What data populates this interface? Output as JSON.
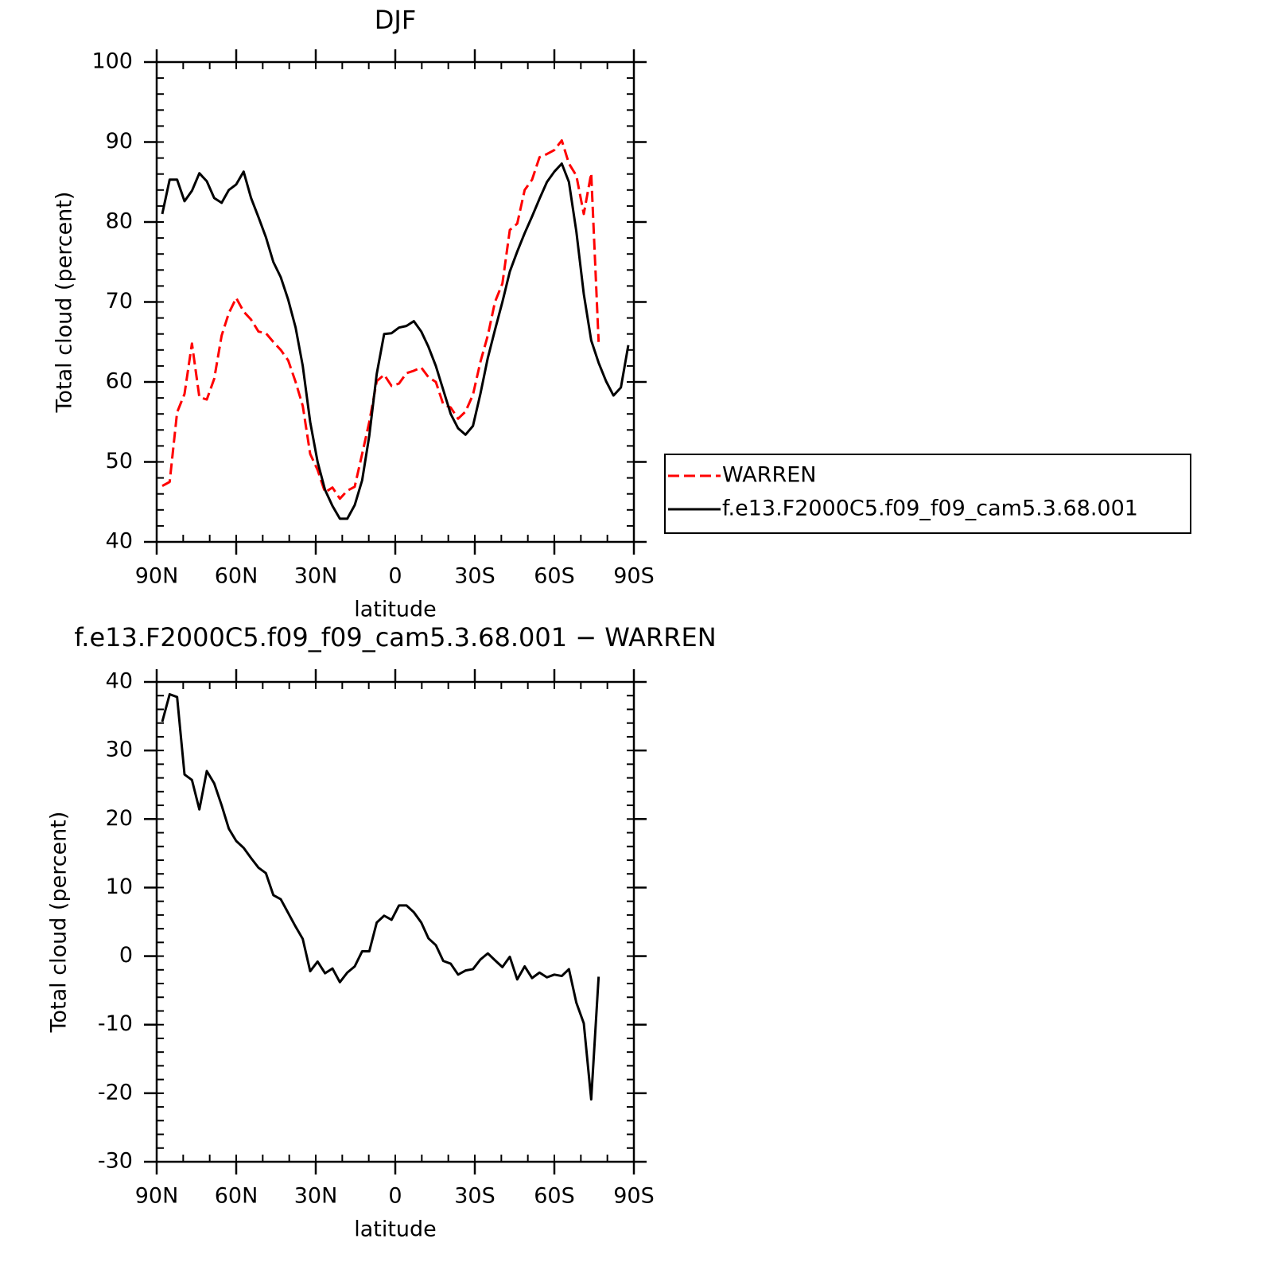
{
  "chart_data": [
    {
      "type": "line",
      "title": "DJF",
      "xlabel": "latitude",
      "ylabel": "Total cloud (percent)",
      "xlim": [
        90,
        -90
      ],
      "ylim": [
        40,
        100
      ],
      "xticks": [
        {
          "value": 90,
          "label": "90N"
        },
        {
          "value": 60,
          "label": "60N"
        },
        {
          "value": 30,
          "label": "30N"
        },
        0,
        {
          "value": -30,
          "label": "30S"
        },
        {
          "value": -60,
          "label": "60S"
        },
        {
          "value": -90,
          "label": "90S"
        }
      ],
      "yticks": [
        40,
        50,
        60,
        70,
        80,
        90,
        100
      ],
      "legend": "right",
      "x": [
        87.9,
        85.1,
        82.3,
        79.5,
        76.7,
        73.9,
        71.1,
        68.3,
        65.5,
        62.8,
        60.0,
        57.2,
        54.4,
        51.6,
        48.8,
        46.0,
        43.2,
        40.4,
        37.6,
        34.9,
        32.1,
        29.3,
        26.5,
        23.7,
        20.9,
        18.1,
        15.3,
        12.5,
        9.8,
        7.0,
        4.2,
        1.4,
        -1.4,
        -4.2,
        -7.0,
        -9.8,
        -12.5,
        -15.3,
        -18.1,
        -20.9,
        -23.7,
        -26.5,
        -29.3,
        -32.1,
        -34.9,
        -37.6,
        -40.4,
        -43.2,
        -46.0,
        -48.8,
        -51.6,
        -54.4,
        -57.2,
        -60.0,
        -62.8,
        -65.5,
        -68.3,
        -71.1,
        -73.9,
        -76.7,
        -79.5,
        -82.3,
        -85.1,
        -87.9
      ],
      "series": [
        {
          "name": "WARREN",
          "color": "#ff0000",
          "dash": true,
          "values": [
            47.0,
            47.5,
            56.2,
            58.5,
            64.8,
            58.1,
            57.8,
            60.4,
            65.8,
            68.6,
            70.5,
            68.8,
            67.8,
            66.3,
            66.1,
            65.0,
            64.0,
            62.7,
            60.0,
            57.0,
            51.0,
            49.0,
            46.2,
            46.8,
            45.4,
            46.4,
            46.9,
            51.0,
            55.0,
            60.1,
            60.9,
            59.5,
            59.8,
            61.1,
            61.4,
            61.8,
            60.6,
            60.0,
            57.2,
            56.8,
            55.4,
            56.3,
            58.4,
            62.5,
            65.8,
            70.0,
            72.3,
            79.0,
            79.8,
            84.0,
            85.3,
            88.1,
            88.5,
            89.0,
            90.2,
            87.3,
            85.8,
            81.0,
            86.1,
            65.0,
            null,
            null,
            null,
            null
          ]
        },
        {
          "name": "f.e13.F2000C5.f09_f09_cam5.3.68.001",
          "color": "#000000",
          "dash": false,
          "values": [
            81.0,
            85.3,
            85.3,
            82.6,
            83.9,
            86.1,
            85.1,
            83.0,
            82.4,
            84.0,
            84.7,
            86.3,
            83.0,
            80.6,
            78.1,
            75.0,
            73.1,
            70.3,
            66.8,
            62.0,
            55.0,
            50.0,
            46.5,
            44.5,
            42.9,
            42.9,
            44.6,
            47.7,
            53.3,
            61.0,
            66.0,
            66.1,
            66.8,
            67.0,
            67.6,
            66.3,
            64.4,
            62.0,
            59.0,
            56.0,
            54.2,
            53.4,
            54.5,
            58.5,
            63.0,
            66.5,
            70.0,
            73.8,
            76.3,
            78.6,
            80.7,
            82.9,
            85.0,
            86.3,
            87.3,
            85.0,
            78.8,
            71.0,
            65.2,
            62.4,
            60.1,
            58.3,
            59.3,
            64.6
          ]
        }
      ]
    },
    {
      "type": "line",
      "title": "f.e13.F2000C5.f09_f09_cam5.3.68.001 − WARREN",
      "xlabel": "latitude",
      "ylabel": "Total cloud (percent)",
      "xlim": [
        90,
        -90
      ],
      "ylim": [
        -30,
        40
      ],
      "xticks": [
        {
          "value": 90,
          "label": "90N"
        },
        {
          "value": 60,
          "label": "60N"
        },
        {
          "value": 30,
          "label": "30N"
        },
        0,
        {
          "value": -30,
          "label": "30S"
        },
        {
          "value": -60,
          "label": "60S"
        },
        {
          "value": -90,
          "label": "90S"
        }
      ],
      "yticks": [
        -30,
        -20,
        -10,
        0,
        10,
        20,
        30,
        40
      ],
      "x": [
        87.9,
        85.1,
        82.3,
        79.5,
        76.7,
        73.9,
        71.1,
        68.3,
        65.5,
        62.8,
        60.0,
        57.2,
        54.4,
        51.6,
        48.8,
        46.0,
        43.2,
        40.4,
        37.6,
        34.9,
        32.1,
        29.3,
        26.5,
        23.7,
        20.9,
        18.1,
        15.3,
        12.5,
        9.8,
        7.0,
        4.2,
        1.4,
        -1.4,
        -4.2,
        -7.0,
        -9.8,
        -12.5,
        -15.3,
        -18.1,
        -20.9,
        -23.7,
        -26.5,
        -29.3,
        -32.1,
        -34.9,
        -37.6,
        -40.4,
        -43.2,
        -46.0,
        -48.8,
        -51.6,
        -54.4,
        -57.2,
        -60.0,
        -62.8,
        -65.5,
        -68.3,
        -71.1,
        -73.9,
        -76.7,
        -79.5,
        -82.3,
        -85.1,
        -87.9
      ],
      "series": [
        {
          "color": "#000000",
          "dash": false,
          "values": [
            34.2,
            38.2,
            37.8,
            26.5,
            25.7,
            21.4,
            27.0,
            25.2,
            22.0,
            18.6,
            16.8,
            15.8,
            14.3,
            12.9,
            12.1,
            8.9,
            8.3,
            6.3,
            4.3,
            2.5,
            -2.2,
            -0.8,
            -2.5,
            -1.8,
            -3.8,
            -2.4,
            -1.5,
            0.7,
            0.7,
            4.9,
            5.9,
            5.3,
            7.4,
            7.4,
            6.4,
            4.9,
            2.6,
            1.6,
            -0.7,
            -1.1,
            -2.7,
            -2.1,
            -1.9,
            -0.5,
            0.4,
            -0.6,
            -1.6,
            -0.1,
            -3.4,
            -1.5,
            -3.2,
            -2.4,
            -3.1,
            -2.7,
            -2.9,
            -1.9,
            -6.8,
            -9.8,
            -20.9,
            -3.0,
            null,
            null,
            null,
            null
          ]
        }
      ]
    }
  ]
}
